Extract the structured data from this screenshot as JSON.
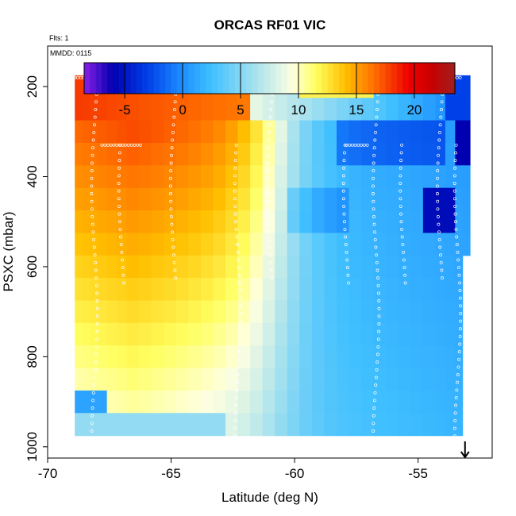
{
  "chart_data": {
    "type": "heatmap",
    "title": "ORCAS RF01 VIC",
    "annotations": {
      "flights": "Flts: 1",
      "date": "MMDD: 0115"
    },
    "xlabel": "Latitude (deg N)",
    "ylabel": "PSXC (mbar)",
    "xlim": [
      -70,
      -52
    ],
    "ylim": [
      1025,
      110
    ],
    "y_reversed": true,
    "x_ticks": [
      "-70",
      "-65",
      "-60",
      "-55"
    ],
    "x_tick_values": [
      -70,
      -65,
      -60,
      -55
    ],
    "y_ticks": [
      "200",
      "400",
      "600",
      "800",
      "1000"
    ],
    "y_tick_values": [
      200,
      400,
      600,
      800,
      1000
    ],
    "colorbar": {
      "range": [
        -8.5,
        23.5
      ],
      "ticks": [
        "-5",
        "0",
        "5",
        "10",
        "15",
        "20"
      ],
      "tick_values": [
        -5,
        0,
        5,
        10,
        15,
        20
      ],
      "stops": [
        "#8a1fe6",
        "#0000b0",
        "#0040e8",
        "#1e90ff",
        "#40c0ff",
        "#ffffe0",
        "#ffff60",
        "#ffc000",
        "#ff7000",
        "#ee0000",
        "#c80000",
        "#a02020"
      ],
      "stop_values": [
        -8.5,
        -6,
        -3,
        0,
        2.5,
        9.5,
        11.5,
        14,
        16.5,
        19.5,
        21.5,
        23.5
      ]
    },
    "x_edges": [
      -68.9,
      -68.6,
      -68.3,
      -68.0,
      -67.6,
      -67.2,
      -66.8,
      -66.3,
      -65.8,
      -65.3,
      -64.8,
      -64.3,
      -63.8,
      -63.3,
      -62.8,
      -62.3,
      -61.8,
      -61.3,
      -60.8,
      -60.3,
      -59.8,
      -59.3,
      -58.8,
      -58.3,
      -57.8,
      -57.3,
      -56.8,
      -56.3,
      -55.8,
      -55.3,
      -54.8,
      -54.3,
      -53.9,
      -53.5,
      -53.2,
      -52.9
    ],
    "p_edges": [
      175,
      225,
      275,
      325,
      375,
      425,
      475,
      525,
      575,
      625,
      675,
      725,
      775,
      825,
      875,
      925,
      975,
      1025
    ],
    "empty_cells": [
      [
        16,
        0
      ],
      [
        16,
        1
      ],
      [
        16,
        2
      ],
      [
        16,
        3
      ],
      [
        16,
        4
      ],
      [
        16,
        5
      ],
      [
        16,
        6
      ],
      [
        16,
        7
      ],
      [
        16,
        8
      ],
      [
        16,
        9
      ],
      [
        16,
        10
      ],
      [
        16,
        11
      ],
      [
        16,
        12
      ],
      [
        16,
        13
      ],
      [
        16,
        14
      ],
      [
        16,
        15
      ],
      [
        16,
        16
      ],
      [
        16,
        17
      ],
      [
        16,
        18
      ],
      [
        16,
        19
      ],
      [
        16,
        20
      ],
      [
        16,
        21
      ],
      [
        16,
        22
      ],
      [
        16,
        23
      ],
      [
        16,
        24
      ],
      [
        16,
        25
      ],
      [
        16,
        26
      ],
      [
        16,
        27
      ],
      [
        16,
        28
      ],
      [
        16,
        29
      ],
      [
        16,
        30
      ],
      [
        16,
        31
      ],
      [
        16,
        32
      ],
      [
        16,
        33
      ],
      [
        16,
        34
      ],
      [
        15,
        34
      ],
      [
        14,
        34
      ],
      [
        13,
        34
      ],
      [
        12,
        34
      ],
      [
        11,
        34
      ],
      [
        10,
        34
      ],
      [
        9,
        34
      ],
      [
        8,
        34
      ]
    ],
    "vertical_profile_latitudes": [
      -68.1,
      -67.0,
      -64.9,
      -62.3,
      -61.0,
      -57.9,
      -56.7,
      -55.6,
      -54.1,
      -53.4
    ],
    "flight_track_levels_mbar": [
      180,
      330,
      990
    ],
    "track_marker_color": "#ffffff",
    "arrow_at_latitude": -53.1
  }
}
